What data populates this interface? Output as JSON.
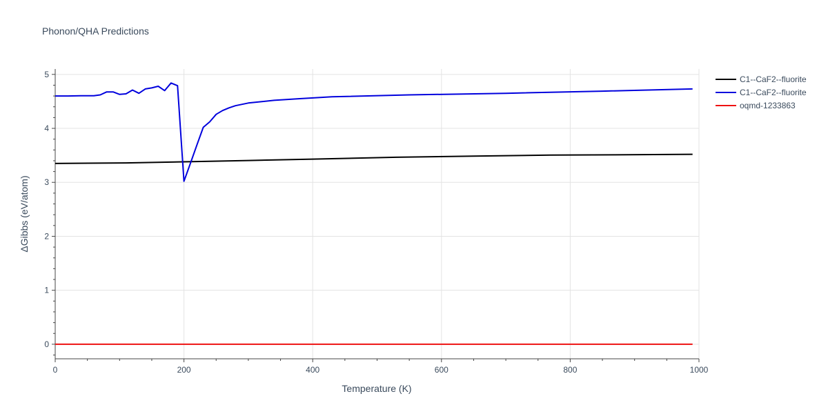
{
  "chart_data": {
    "type": "line",
    "title": "Phonon/QHA Predictions",
    "xlabel": "Temperature (K)",
    "ylabel": "ΔGibbs (eV/atom)",
    "xlim": [
      0,
      1000
    ],
    "ylim": [
      -0.27,
      5.1
    ],
    "x_ticks": [
      0,
      200,
      400,
      600,
      800,
      1000
    ],
    "x_tick_labels": [
      "0",
      "200",
      "400",
      "600",
      "800",
      "1000"
    ],
    "x_minor_step": 50,
    "y_ticks": [
      0,
      1,
      2,
      3,
      4,
      5
    ],
    "y_tick_labels": [
      "0",
      "1",
      "2",
      "3",
      "4",
      "5"
    ],
    "y_minor_step": 0.2,
    "grid": true,
    "legend_position": "right",
    "series": [
      {
        "name": "C1--CaF2--fluorite",
        "color": "#000000",
        "x": [
          0,
          110,
          200,
          300,
          400,
          530,
          650,
          770,
          870,
          990
        ],
        "y": [
          3.35,
          3.36,
          3.38,
          3.405,
          3.43,
          3.465,
          3.485,
          3.505,
          3.51,
          3.52
        ]
      },
      {
        "name": "C1--CaF2--fluorite",
        "color": "#0000dd",
        "x": [
          0,
          20,
          40,
          60,
          70,
          80,
          90,
          100,
          110,
          120,
          130,
          140,
          150,
          160,
          170,
          180,
          190,
          200,
          210,
          220,
          230,
          240,
          250,
          260,
          270,
          280,
          300,
          340,
          380,
          430,
          550,
          700,
          850,
          990
        ],
        "y": [
          4.6,
          4.6,
          4.605,
          4.605,
          4.62,
          4.675,
          4.675,
          4.63,
          4.64,
          4.71,
          4.65,
          4.73,
          4.75,
          4.78,
          4.7,
          4.84,
          4.79,
          3.02,
          3.35,
          3.69,
          4.02,
          4.12,
          4.26,
          4.33,
          4.38,
          4.42,
          4.47,
          4.52,
          4.55,
          4.585,
          4.62,
          4.65,
          4.69,
          4.73
        ]
      },
      {
        "name": "oqmd-1233863",
        "color": "#ee1111",
        "x": [
          0,
          990
        ],
        "y": [
          0,
          0
        ]
      }
    ]
  }
}
